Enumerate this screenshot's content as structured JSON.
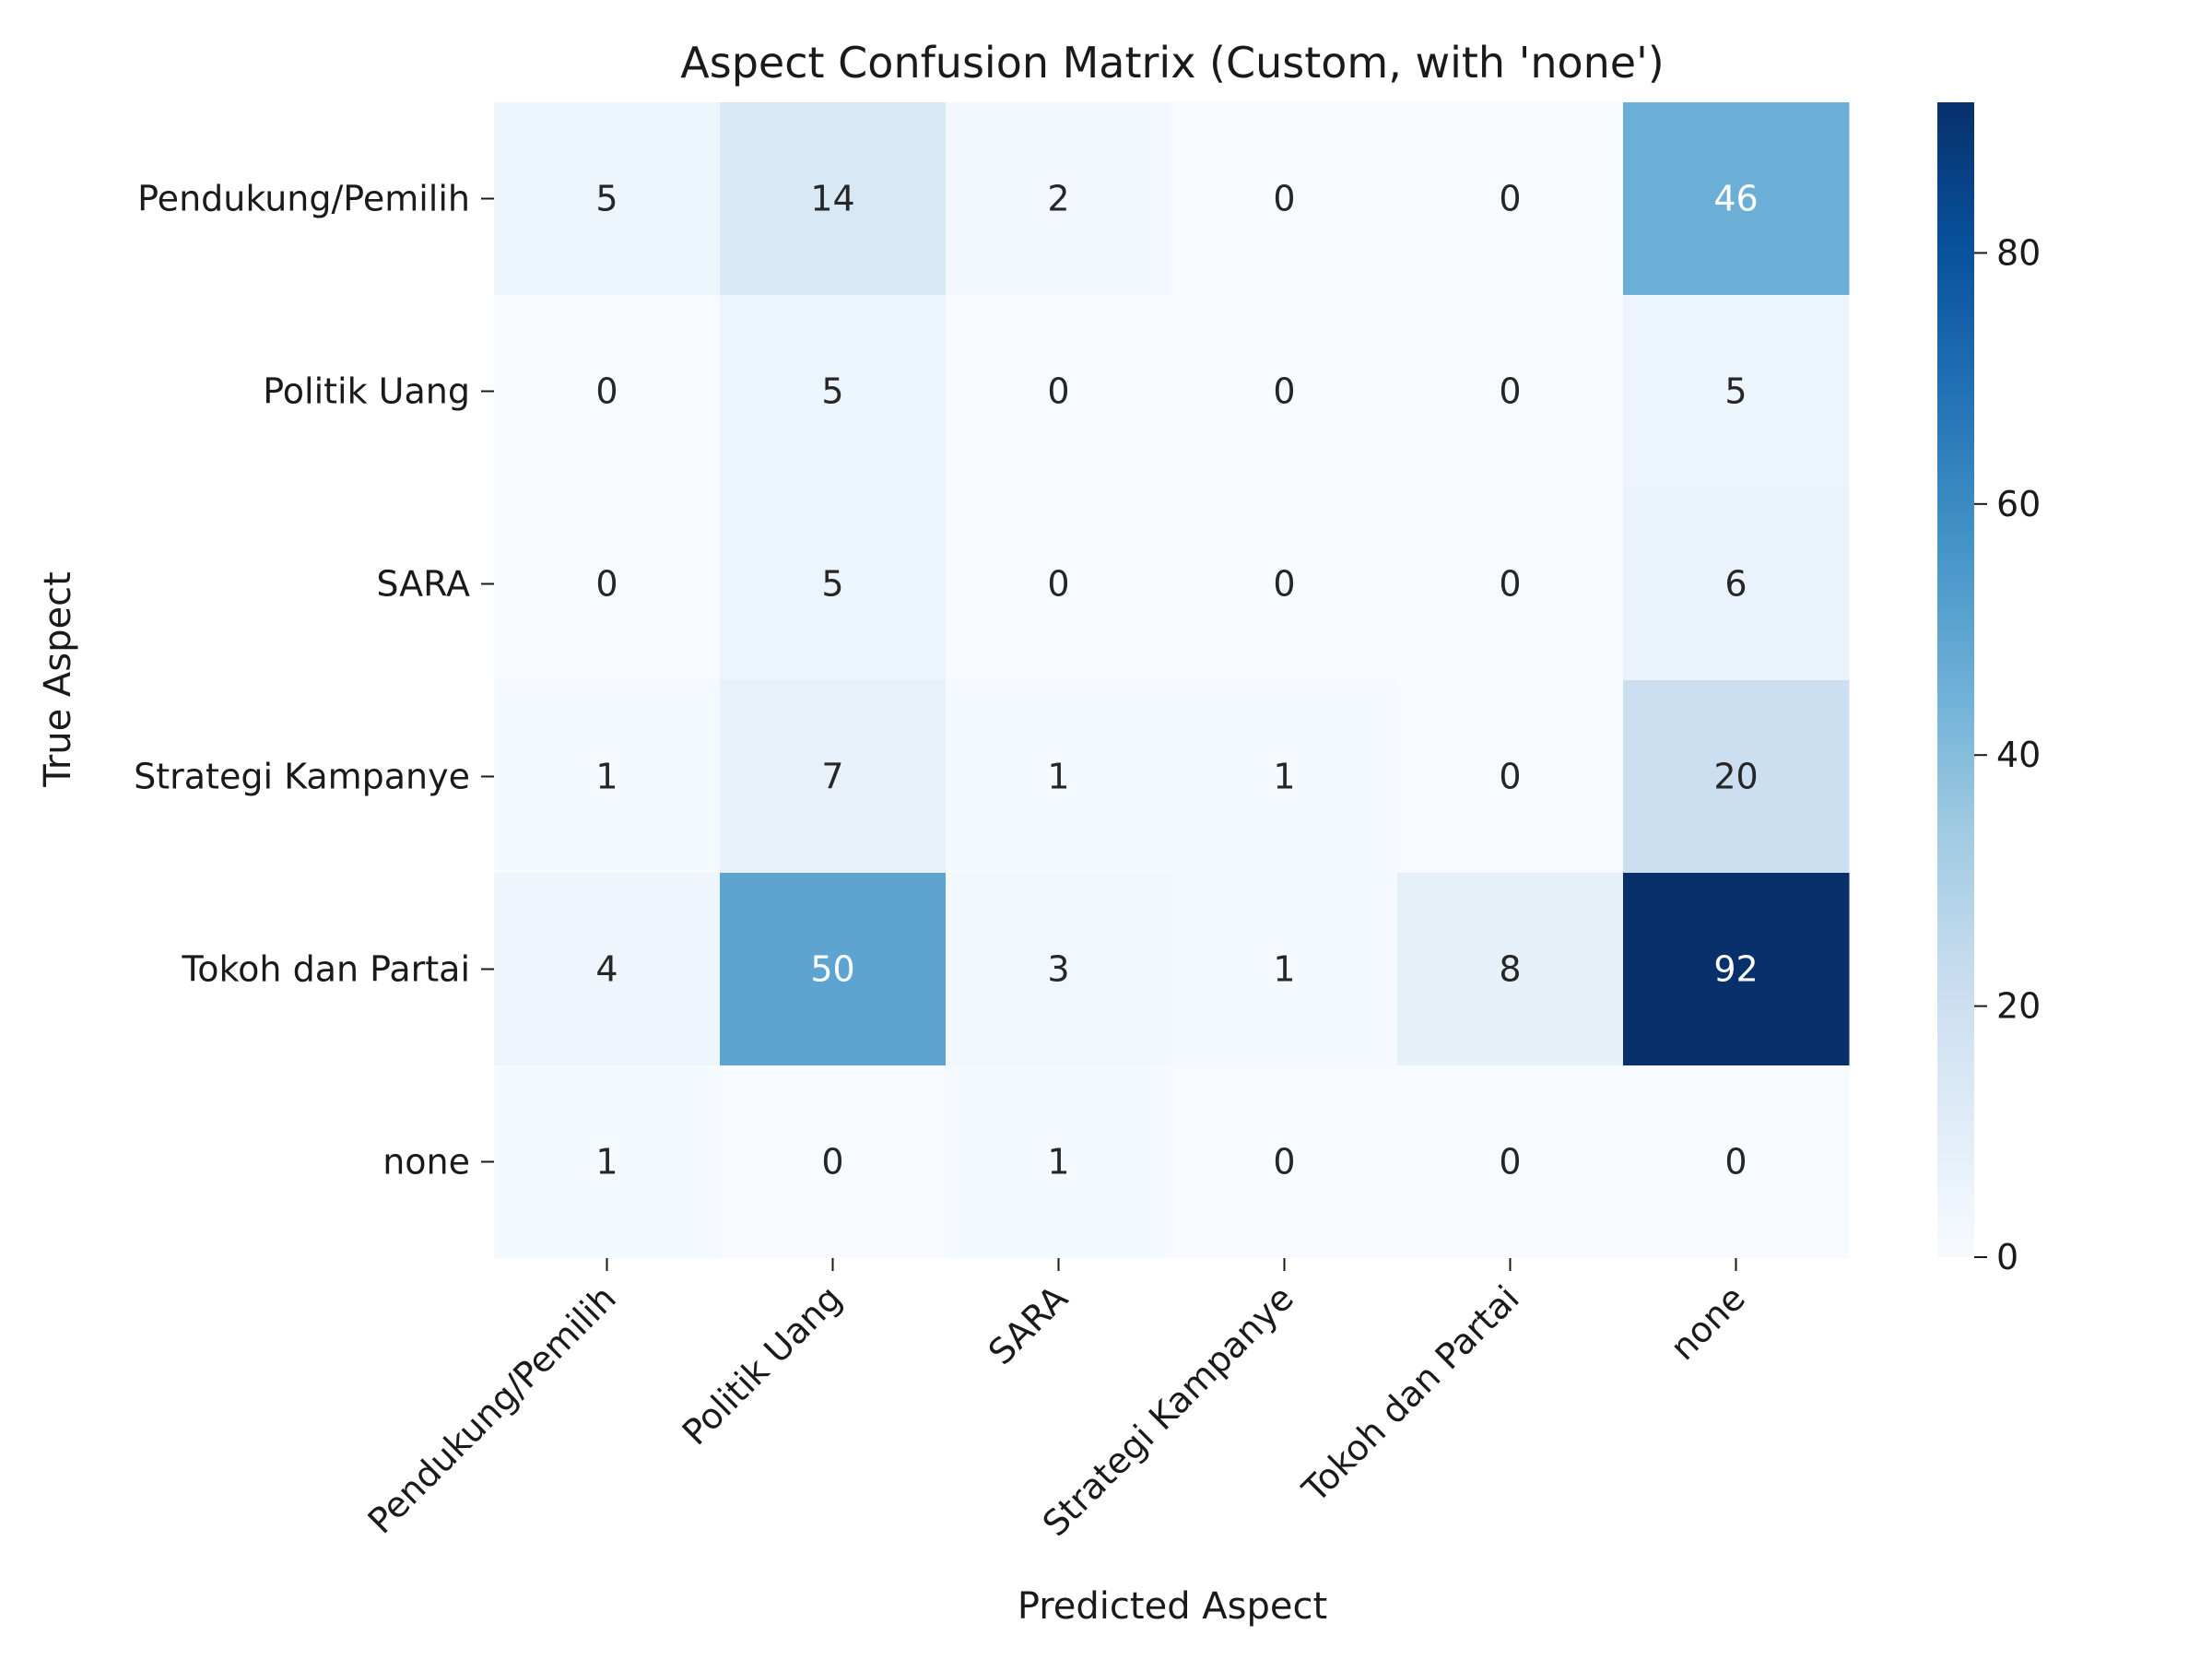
{
  "chart_data": {
    "type": "heatmap",
    "title": "Aspect Confusion Matrix (Custom, with 'none')",
    "xlabel": "Predicted Aspect",
    "ylabel": "True Aspect",
    "x_categories": [
      "Pendukung/Pemilih",
      "Politik Uang",
      "SARA",
      "Strategi Kampanye",
      "Tokoh dan Partai",
      "none"
    ],
    "y_categories": [
      "Pendukung/Pemilih",
      "Politik Uang",
      "SARA",
      "Strategi Kampanye",
      "Tokoh dan Partai",
      "none"
    ],
    "values": [
      [
        5,
        14,
        2,
        0,
        0,
        46
      ],
      [
        0,
        5,
        0,
        0,
        0,
        5
      ],
      [
        0,
        5,
        0,
        0,
        0,
        6
      ],
      [
        1,
        7,
        1,
        1,
        0,
        20
      ],
      [
        4,
        50,
        3,
        1,
        8,
        92
      ],
      [
        1,
        0,
        1,
        0,
        0,
        0
      ]
    ],
    "colormap": "Blues",
    "colorbar": {
      "range": [
        0,
        92
      ],
      "ticks": [
        0,
        20,
        40,
        60,
        80
      ]
    },
    "colors": {
      "low": "#f7fbff",
      "high": "#08306b",
      "text_dark": "#262626",
      "text_light": "#ffffff"
    }
  }
}
